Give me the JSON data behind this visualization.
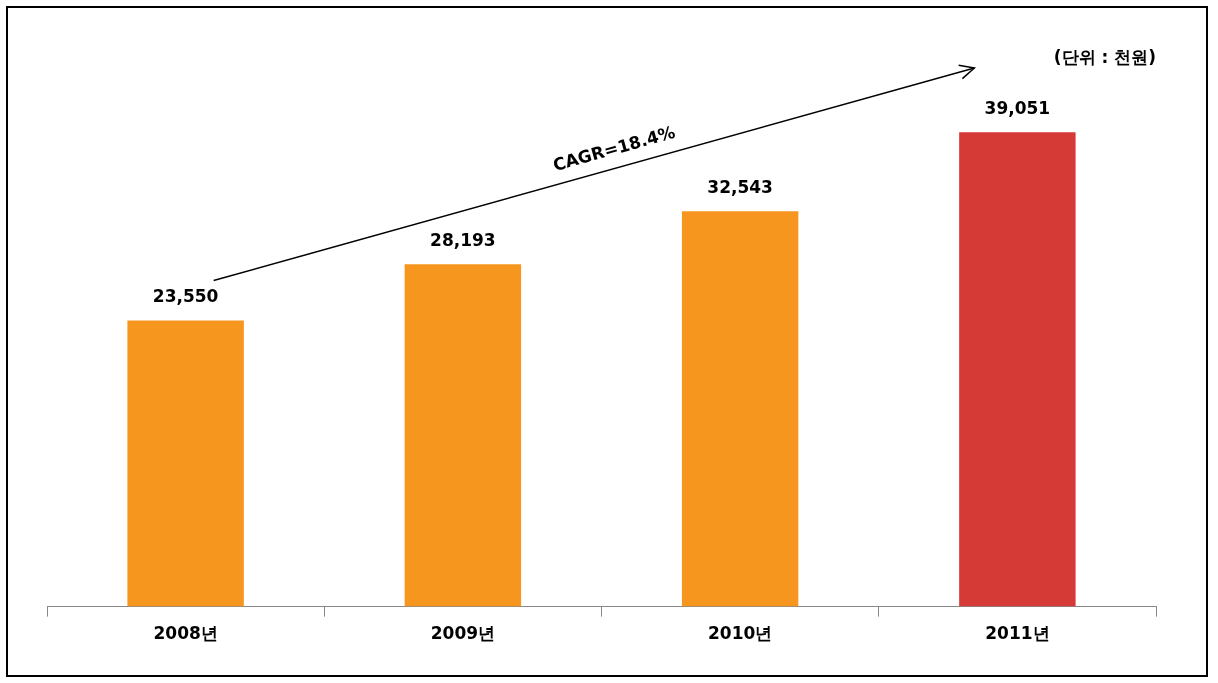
{
  "chart_data": {
    "type": "bar",
    "categories": [
      "2008년",
      "2009년",
      "2010년",
      "2011년"
    ],
    "values": [
      23550,
      28193,
      32543,
      39051
    ],
    "colors": [
      "#f7961e",
      "#f7961e",
      "#f7961e",
      "#d63a36"
    ],
    "value_labels": [
      "23,550",
      "28,193",
      "32,543",
      "39,051"
    ],
    "grid": false,
    "legend": false,
    "annotations": [
      "(단위 : 천원)",
      "CAGR=18.4%"
    ]
  }
}
